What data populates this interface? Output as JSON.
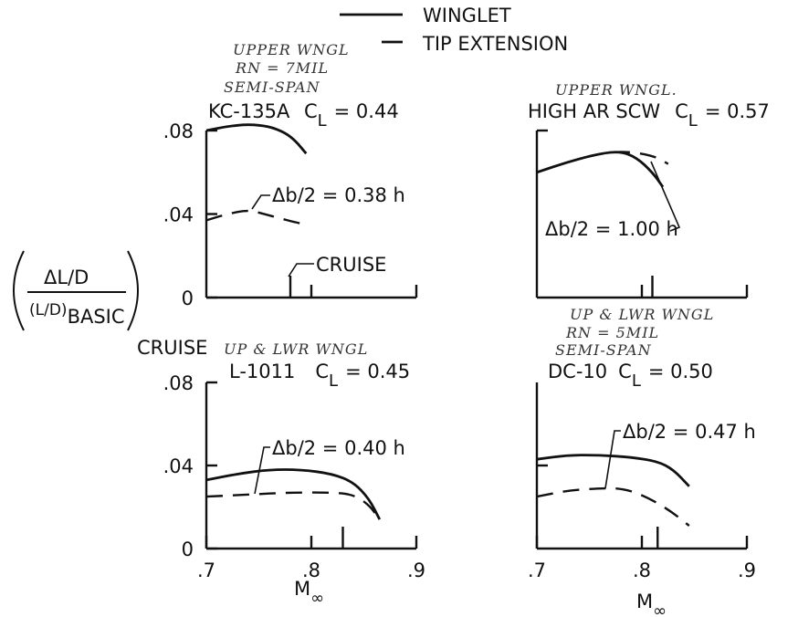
{
  "legend": {
    "solid_label": "WINGLET",
    "dashed_label": "TIP EXTENSION"
  },
  "y_label": {
    "numerator": "ΔL/D",
    "denominator_main": "(L/D)",
    "denominator_sub": "BASIC"
  },
  "x_label": {
    "main": "M",
    "sub": "∞"
  },
  "cruise_side_label": "CRUISE",
  "chart_data": [
    {
      "type": "line",
      "aircraft": "KC-135A",
      "cl_text": "C",
      "cl_sub": "L",
      "cl_value": "= 0.44",
      "annotation_handwritten": [
        "UPPER WNGL",
        "RN = 7MIL",
        "SEMI-SPAN"
      ],
      "db_label": "Δb/2 = 0.38 h",
      "cruise_label": "CRUISE",
      "cruise_mach": 0.78,
      "xlim": [
        0.7,
        0.9
      ],
      "ylim": [
        0,
        0.08
      ],
      "x_ticks": [
        0.8,
        0.9
      ],
      "x_tick_labels": [],
      "y_ticks": [
        0,
        0.04,
        0.08
      ],
      "y_tick_labels": [
        "0",
        ".04",
        ".08"
      ],
      "series": [
        {
          "name": "WINGLET",
          "style": "solid",
          "x": [
            0.7,
            0.72,
            0.74,
            0.76,
            0.775,
            0.785,
            0.795
          ],
          "y": [
            0.08,
            0.082,
            0.083,
            0.082,
            0.079,
            0.075,
            0.069
          ]
        },
        {
          "name": "TIP EXTENSION",
          "style": "dashed",
          "x": [
            0.7,
            0.72,
            0.74,
            0.755,
            0.77,
            0.785,
            0.795
          ],
          "y": [
            0.037,
            0.04,
            0.042,
            0.04,
            0.038,
            0.036,
            0.035
          ]
        }
      ]
    },
    {
      "type": "line",
      "aircraft": "HIGH AR SCW",
      "cl_text": "C",
      "cl_sub": "L",
      "cl_value": "= 0.57",
      "annotation_handwritten": [
        "UPPER WNGL."
      ],
      "db_label": "Δb/2 = 1.00 h",
      "cruise_mach": 0.81,
      "xlim": [
        0.7,
        0.9
      ],
      "ylim": [
        0,
        0.08
      ],
      "x_ticks": [
        0.8,
        0.9
      ],
      "x_tick_labels": [],
      "y_ticks": [
        0.08
      ],
      "y_tick_labels": [],
      "series": [
        {
          "name": "WINGLET",
          "style": "solid",
          "x": [
            0.7,
            0.73,
            0.76,
            0.78,
            0.795,
            0.81,
            0.82
          ],
          "y": [
            0.06,
            0.065,
            0.069,
            0.07,
            0.067,
            0.06,
            0.053
          ]
        },
        {
          "name": "TIP EXTENSION",
          "style": "dashed",
          "x": [
            0.7,
            0.73,
            0.76,
            0.78,
            0.8,
            0.815,
            0.825
          ],
          "y": [
            0.06,
            0.065,
            0.069,
            0.07,
            0.069,
            0.067,
            0.064
          ]
        }
      ]
    },
    {
      "type": "line",
      "aircraft": "L-1011",
      "cl_text": "C",
      "cl_sub": "L",
      "cl_value": "= 0.45",
      "annotation_handwritten": [
        "UP & LWR WNGL"
      ],
      "db_label": "Δb/2 = 0.40 h",
      "cruise_mach": 0.83,
      "xlim": [
        0.7,
        0.9
      ],
      "ylim": [
        0,
        0.08
      ],
      "x_ticks": [
        0.7,
        0.8,
        0.9
      ],
      "x_tick_labels": [
        ".7",
        ".8",
        ".9"
      ],
      "y_ticks": [
        0,
        0.04,
        0.08
      ],
      "y_tick_labels": [
        "0",
        ".04",
        ".08"
      ],
      "series": [
        {
          "name": "WINGLET",
          "style": "solid",
          "x": [
            0.7,
            0.73,
            0.76,
            0.79,
            0.82,
            0.84,
            0.855,
            0.865
          ],
          "y": [
            0.033,
            0.036,
            0.038,
            0.038,
            0.036,
            0.032,
            0.024,
            0.014
          ]
        },
        {
          "name": "TIP EXTENSION",
          "style": "dashed",
          "x": [
            0.7,
            0.74,
            0.78,
            0.82,
            0.84,
            0.855,
            0.865
          ],
          "y": [
            0.025,
            0.026,
            0.027,
            0.027,
            0.026,
            0.021,
            0.014
          ]
        }
      ]
    },
    {
      "type": "line",
      "aircraft": "DC-10",
      "cl_text": "C",
      "cl_sub": "L",
      "cl_value": "= 0.50",
      "annotation_handwritten": [
        "UP & LWR WNGL",
        "RN = 5MIL",
        "SEMI-SPAN"
      ],
      "db_label": "Δb/2 = 0.47 h",
      "cruise_mach": 0.815,
      "xlim": [
        0.7,
        0.9
      ],
      "ylim": [
        0,
        0.08
      ],
      "x_ticks": [
        0.7,
        0.8,
        0.9
      ],
      "x_tick_labels": [
        ".7",
        ".8",
        ".9"
      ],
      "y_ticks": [
        0.04
      ],
      "y_tick_labels": [],
      "series": [
        {
          "name": "WINGLET",
          "style": "solid",
          "x": [
            0.7,
            0.73,
            0.76,
            0.79,
            0.815,
            0.83,
            0.845
          ],
          "y": [
            0.043,
            0.045,
            0.045,
            0.044,
            0.042,
            0.038,
            0.03
          ]
        },
        {
          "name": "TIP EXTENSION",
          "style": "dashed",
          "x": [
            0.7,
            0.73,
            0.76,
            0.78,
            0.8,
            0.825,
            0.845
          ],
          "y": [
            0.025,
            0.028,
            0.029,
            0.029,
            0.026,
            0.019,
            0.011
          ]
        }
      ]
    }
  ]
}
